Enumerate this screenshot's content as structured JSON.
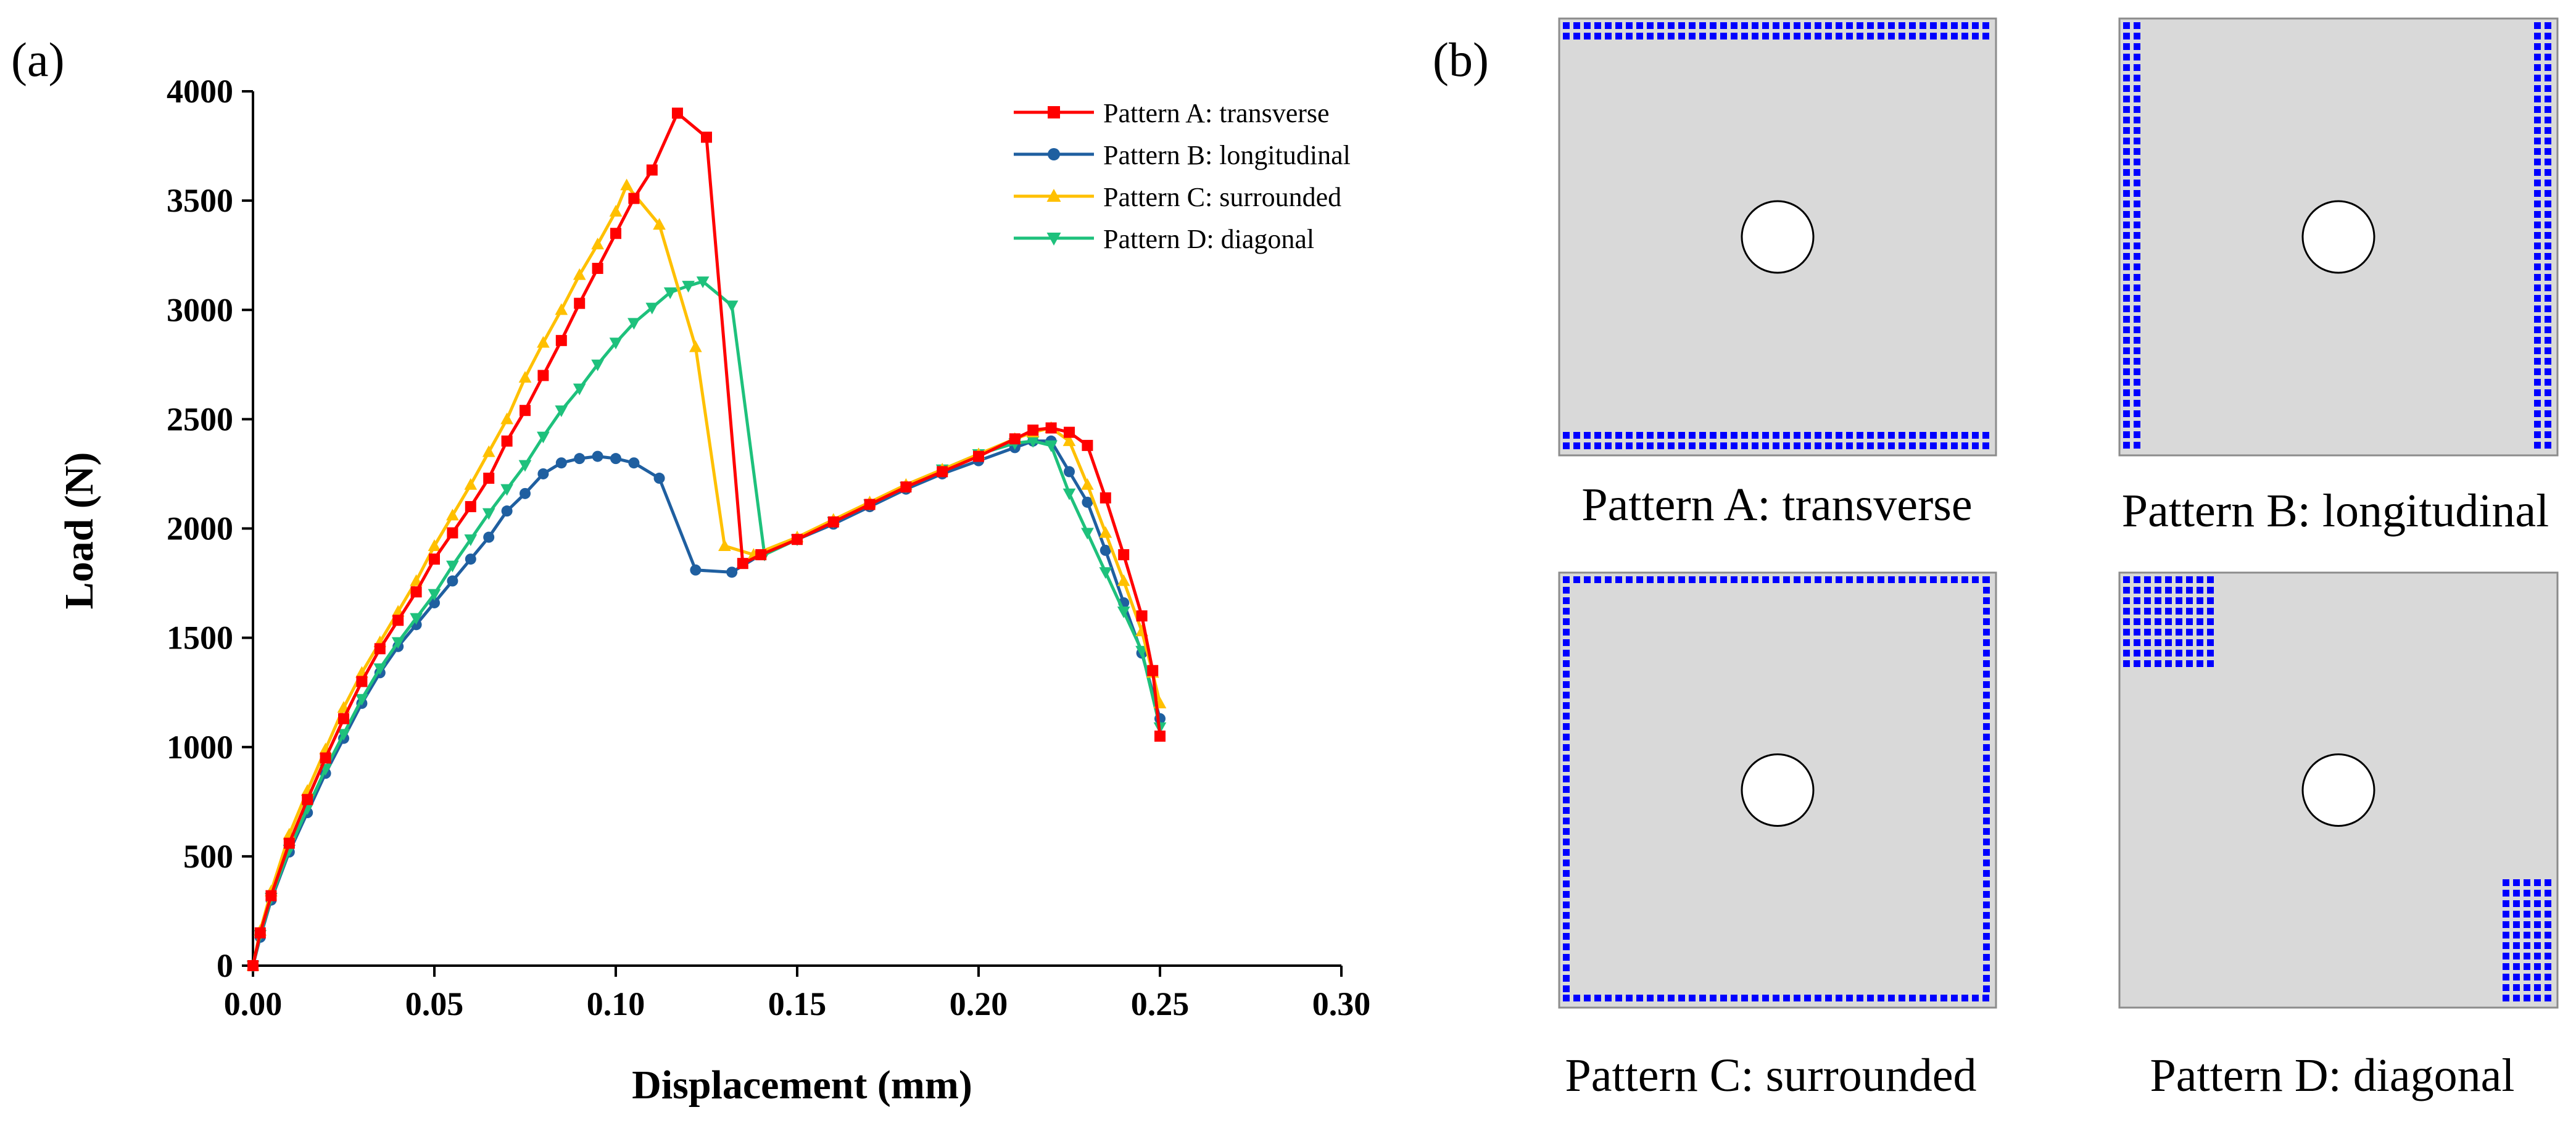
{
  "panel_labels": {
    "a": "(a)",
    "b": "(b)"
  },
  "chart_data": {
    "type": "line",
    "xlabel": "Displacement (mm)",
    "ylabel": "Load (N)",
    "xlim": [
      0,
      0.3
    ],
    "ylim": [
      0,
      4000
    ],
    "xticks": [
      0.0,
      0.05,
      0.1,
      0.15,
      0.2,
      0.25,
      0.3
    ],
    "xtick_labels": [
      "0.00",
      "0.05",
      "0.10",
      "0.15",
      "0.20",
      "0.25",
      "0.30"
    ],
    "yticks": [
      0,
      500,
      1000,
      1500,
      2000,
      2500,
      3000,
      3500,
      4000
    ],
    "ytick_labels": [
      "0",
      "500",
      "1000",
      "1500",
      "2000",
      "2500",
      "3000",
      "3500",
      "4000"
    ],
    "legend_position": "top-right",
    "series": [
      {
        "name": "Pattern A: transverse",
        "color": "#ff0000",
        "marker": "square",
        "points": [
          [
            0,
            0
          ],
          [
            0.002,
            150
          ],
          [
            0.005,
            320
          ],
          [
            0.01,
            560
          ],
          [
            0.015,
            760
          ],
          [
            0.02,
            950
          ],
          [
            0.025,
            1130
          ],
          [
            0.03,
            1300
          ],
          [
            0.035,
            1450
          ],
          [
            0.04,
            1580
          ],
          [
            0.045,
            1710
          ],
          [
            0.05,
            1860
          ],
          [
            0.055,
            1980
          ],
          [
            0.06,
            2100
          ],
          [
            0.065,
            2230
          ],
          [
            0.07,
            2400
          ],
          [
            0.075,
            2540
          ],
          [
            0.08,
            2700
          ],
          [
            0.085,
            2860
          ],
          [
            0.09,
            3030
          ],
          [
            0.095,
            3190
          ],
          [
            0.1,
            3350
          ],
          [
            0.105,
            3510
          ],
          [
            0.11,
            3640
          ],
          [
            0.117,
            3900
          ],
          [
            0.125,
            3790
          ],
          [
            0.135,
            1840
          ],
          [
            0.14,
            1880
          ],
          [
            0.15,
            1950
          ],
          [
            0.16,
            2030
          ],
          [
            0.17,
            2110
          ],
          [
            0.18,
            2190
          ],
          [
            0.19,
            2260
          ],
          [
            0.2,
            2330
          ],
          [
            0.21,
            2410
          ],
          [
            0.215,
            2450
          ],
          [
            0.22,
            2460
          ],
          [
            0.225,
            2440
          ],
          [
            0.23,
            2380
          ],
          [
            0.235,
            2140
          ],
          [
            0.24,
            1880
          ],
          [
            0.245,
            1600
          ],
          [
            0.248,
            1350
          ],
          [
            0.25,
            1050
          ]
        ]
      },
      {
        "name": "Pattern B: longitudinal",
        "color": "#1f5fa0",
        "marker": "circle",
        "points": [
          [
            0,
            0
          ],
          [
            0.002,
            130
          ],
          [
            0.005,
            300
          ],
          [
            0.01,
            520
          ],
          [
            0.015,
            700
          ],
          [
            0.02,
            880
          ],
          [
            0.025,
            1040
          ],
          [
            0.03,
            1200
          ],
          [
            0.035,
            1340
          ],
          [
            0.04,
            1460
          ],
          [
            0.045,
            1560
          ],
          [
            0.05,
            1660
          ],
          [
            0.055,
            1760
          ],
          [
            0.06,
            1860
          ],
          [
            0.065,
            1960
          ],
          [
            0.07,
            2080
          ],
          [
            0.075,
            2160
          ],
          [
            0.08,
            2250
          ],
          [
            0.085,
            2300
          ],
          [
            0.09,
            2320
          ],
          [
            0.095,
            2330
          ],
          [
            0.1,
            2320
          ],
          [
            0.105,
            2300
          ],
          [
            0.112,
            2230
          ],
          [
            0.122,
            1810
          ],
          [
            0.132,
            1800
          ],
          [
            0.14,
            1880
          ],
          [
            0.15,
            1950
          ],
          [
            0.16,
            2020
          ],
          [
            0.17,
            2100
          ],
          [
            0.18,
            2180
          ],
          [
            0.19,
            2250
          ],
          [
            0.2,
            2310
          ],
          [
            0.21,
            2370
          ],
          [
            0.215,
            2400
          ],
          [
            0.22,
            2400
          ],
          [
            0.225,
            2260
          ],
          [
            0.23,
            2120
          ],
          [
            0.235,
            1900
          ],
          [
            0.24,
            1660
          ],
          [
            0.245,
            1430
          ],
          [
            0.25,
            1130
          ]
        ]
      },
      {
        "name": "Pattern C: surrounded",
        "color": "#ffc000",
        "marker": "triangle-up",
        "points": [
          [
            0,
            0
          ],
          [
            0.002,
            160
          ],
          [
            0.005,
            340
          ],
          [
            0.01,
            600
          ],
          [
            0.015,
            800
          ],
          [
            0.02,
            990
          ],
          [
            0.025,
            1180
          ],
          [
            0.03,
            1340
          ],
          [
            0.035,
            1480
          ],
          [
            0.04,
            1620
          ],
          [
            0.045,
            1760
          ],
          [
            0.05,
            1920
          ],
          [
            0.055,
            2060
          ],
          [
            0.06,
            2200
          ],
          [
            0.065,
            2350
          ],
          [
            0.07,
            2500
          ],
          [
            0.075,
            2690
          ],
          [
            0.08,
            2850
          ],
          [
            0.085,
            3000
          ],
          [
            0.09,
            3160
          ],
          [
            0.095,
            3300
          ],
          [
            0.1,
            3450
          ],
          [
            0.103,
            3570
          ],
          [
            0.112,
            3390
          ],
          [
            0.122,
            2830
          ],
          [
            0.13,
            1920
          ],
          [
            0.138,
            1880
          ],
          [
            0.15,
            1960
          ],
          [
            0.16,
            2040
          ],
          [
            0.17,
            2120
          ],
          [
            0.18,
            2200
          ],
          [
            0.19,
            2270
          ],
          [
            0.2,
            2340
          ],
          [
            0.21,
            2410
          ],
          [
            0.215,
            2440
          ],
          [
            0.22,
            2460
          ],
          [
            0.225,
            2400
          ],
          [
            0.23,
            2200
          ],
          [
            0.235,
            1980
          ],
          [
            0.24,
            1760
          ],
          [
            0.245,
            1530
          ],
          [
            0.248,
            1340
          ],
          [
            0.25,
            1200
          ]
        ]
      },
      {
        "name": "Pattern D: diagonal",
        "color": "#1ec17c",
        "marker": "triangle-down",
        "points": [
          [
            0,
            0
          ],
          [
            0.002,
            140
          ],
          [
            0.005,
            310
          ],
          [
            0.01,
            530
          ],
          [
            0.015,
            720
          ],
          [
            0.02,
            900
          ],
          [
            0.025,
            1060
          ],
          [
            0.03,
            1220
          ],
          [
            0.035,
            1360
          ],
          [
            0.04,
            1480
          ],
          [
            0.045,
            1590
          ],
          [
            0.05,
            1700
          ],
          [
            0.055,
            1830
          ],
          [
            0.06,
            1950
          ],
          [
            0.065,
            2070
          ],
          [
            0.07,
            2180
          ],
          [
            0.075,
            2290
          ],
          [
            0.08,
            2420
          ],
          [
            0.085,
            2540
          ],
          [
            0.09,
            2640
          ],
          [
            0.095,
            2750
          ],
          [
            0.1,
            2850
          ],
          [
            0.105,
            2940
          ],
          [
            0.11,
            3010
          ],
          [
            0.115,
            3080
          ],
          [
            0.12,
            3110
          ],
          [
            0.124,
            3130
          ],
          [
            0.132,
            3020
          ],
          [
            0.141,
            1880
          ],
          [
            0.15,
            1950
          ],
          [
            0.16,
            2030
          ],
          [
            0.17,
            2110
          ],
          [
            0.18,
            2190
          ],
          [
            0.19,
            2270
          ],
          [
            0.2,
            2340
          ],
          [
            0.21,
            2390
          ],
          [
            0.215,
            2400
          ],
          [
            0.22,
            2380
          ],
          [
            0.225,
            2160
          ],
          [
            0.23,
            1980
          ],
          [
            0.235,
            1800
          ],
          [
            0.24,
            1620
          ],
          [
            0.245,
            1440
          ],
          [
            0.25,
            1090
          ]
        ]
      }
    ]
  },
  "patterns": [
    {
      "id": "A",
      "caption": "Pattern A: transverse"
    },
    {
      "id": "B",
      "caption": "Pattern B: longitudinal"
    },
    {
      "id": "C",
      "caption": "Pattern C: surrounded"
    },
    {
      "id": "D",
      "caption": "Pattern D: diagonal"
    }
  ],
  "colors": {
    "plate": "#d9d9d9",
    "plate_border": "#8c8c8c",
    "reinforcement": "#0000ff",
    "hole": "#ffffff"
  }
}
